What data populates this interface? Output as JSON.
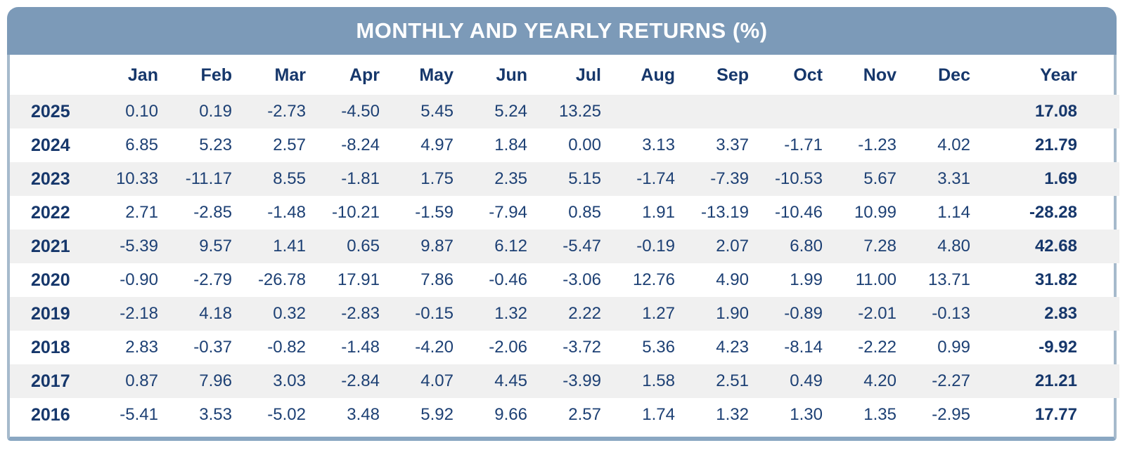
{
  "title": "MONTHLY AND YEARLY RETURNS (%)",
  "colors": {
    "header_bar_bg": "#7c9ab8",
    "card_border_side": "#a6bacc",
    "card_border_bottom": "#8aa7c2",
    "title_text": "#ffffff",
    "heading_text": "#16376b",
    "data_text": "#1d4074",
    "row_stripe": "#f0f0f0",
    "row_plain": "#ffffff"
  },
  "chart_data": {
    "type": "table",
    "title": "MONTHLY AND YEARLY RETURNS (%)",
    "columns": [
      "",
      "Jan",
      "Feb",
      "Mar",
      "Apr",
      "May",
      "Jun",
      "Jul",
      "Aug",
      "Sep",
      "Oct",
      "Nov",
      "Dec",
      "Year"
    ],
    "rows": [
      {
        "year": "2025",
        "monthly": [
          "0.10",
          "0.19",
          "-2.73",
          "-4.50",
          "5.45",
          "5.24",
          "13.25",
          "",
          "",
          "",
          "",
          ""
        ],
        "yearly": "17.08"
      },
      {
        "year": "2024",
        "monthly": [
          "6.85",
          "5.23",
          "2.57",
          "-8.24",
          "4.97",
          "1.84",
          "0.00",
          "3.13",
          "3.37",
          "-1.71",
          "-1.23",
          "4.02"
        ],
        "yearly": "21.79"
      },
      {
        "year": "2023",
        "monthly": [
          "10.33",
          "-11.17",
          "8.55",
          "-1.81",
          "1.75",
          "2.35",
          "5.15",
          "-1.74",
          "-7.39",
          "-10.53",
          "5.67",
          "3.31"
        ],
        "yearly": "1.69"
      },
      {
        "year": "2022",
        "monthly": [
          "2.71",
          "-2.85",
          "-1.48",
          "-10.21",
          "-1.59",
          "-7.94",
          "0.85",
          "1.91",
          "-13.19",
          "-10.46",
          "10.99",
          "1.14"
        ],
        "yearly": "-28.28"
      },
      {
        "year": "2021",
        "monthly": [
          "-5.39",
          "9.57",
          "1.41",
          "0.65",
          "9.87",
          "6.12",
          "-5.47",
          "-0.19",
          "2.07",
          "6.80",
          "7.28",
          "4.80"
        ],
        "yearly": "42.68"
      },
      {
        "year": "2020",
        "monthly": [
          "-0.90",
          "-2.79",
          "-26.78",
          "17.91",
          "7.86",
          "-0.46",
          "-3.06",
          "12.76",
          "4.90",
          "1.99",
          "11.00",
          "13.71"
        ],
        "yearly": "31.82"
      },
      {
        "year": "2019",
        "monthly": [
          "-2.18",
          "4.18",
          "0.32",
          "-2.83",
          "-0.15",
          "1.32",
          "2.22",
          "1.27",
          "1.90",
          "-0.89",
          "-2.01",
          "-0.13"
        ],
        "yearly": "2.83"
      },
      {
        "year": "2018",
        "monthly": [
          "2.83",
          "-0.37",
          "-0.82",
          "-1.48",
          "-4.20",
          "-2.06",
          "-3.72",
          "5.36",
          "4.23",
          "-8.14",
          "-2.22",
          "0.99"
        ],
        "yearly": "-9.92"
      },
      {
        "year": "2017",
        "monthly": [
          "0.87",
          "7.96",
          "3.03",
          "-2.84",
          "4.07",
          "4.45",
          "-3.99",
          "1.58",
          "2.51",
          "0.49",
          "4.20",
          "-2.27"
        ],
        "yearly": "21.21"
      },
      {
        "year": "2016",
        "monthly": [
          "-5.41",
          "3.53",
          "-5.02",
          "3.48",
          "5.92",
          "9.66",
          "2.57",
          "1.74",
          "1.32",
          "1.30",
          "1.35",
          "-2.95"
        ],
        "yearly": "17.77"
      }
    ]
  }
}
